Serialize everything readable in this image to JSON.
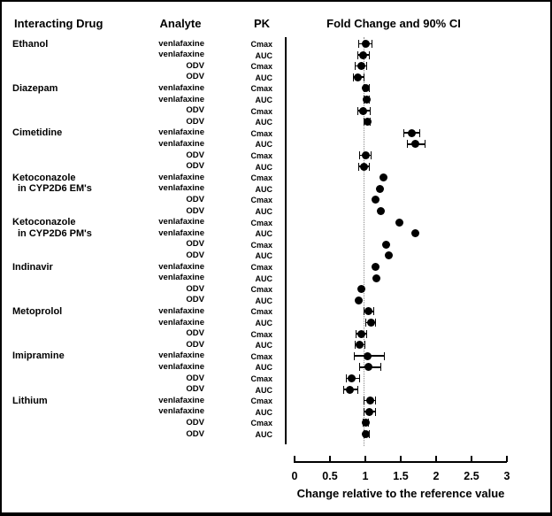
{
  "table": {
    "headers": {
      "drug": "Interacting Drug",
      "analyte": "Analyte",
      "pk": "PK"
    }
  },
  "chart_data": {
    "type": "scatter",
    "subtype": "forest-plot",
    "title": "Fold Change and 90% CI",
    "xlabel": "Change relative to the reference value",
    "x_ticks": [
      "0",
      "0.5",
      "1",
      "1.5",
      "2",
      "2.5",
      "3"
    ],
    "xlim": [
      0,
      3
    ],
    "reference_line": 1,
    "ci_level": "90%",
    "grid": false,
    "legend_position": "none",
    "rows": [
      {
        "drug": "Ethanol",
        "indent": false,
        "analyte": "venlafaxine",
        "pk": "Cmax",
        "value": 1.0,
        "ci": [
          0.9,
          1.1
        ]
      },
      {
        "drug": "",
        "indent": false,
        "analyte": "venlafaxine",
        "pk": "AUC",
        "value": 0.97,
        "ci": [
          0.89,
          1.06
        ]
      },
      {
        "drug": "",
        "indent": false,
        "analyte": "ODV",
        "pk": "Cmax",
        "value": 0.94,
        "ci": [
          0.85,
          1.03
        ]
      },
      {
        "drug": "",
        "indent": false,
        "analyte": "ODV",
        "pk": "AUC",
        "value": 0.89,
        "ci": [
          0.82,
          0.99
        ]
      },
      {
        "drug": "Diazepam",
        "indent": false,
        "analyte": "venlafaxine",
        "pk": "Cmax",
        "value": 1.01,
        "ci": [
          0.97,
          1.06
        ]
      },
      {
        "drug": "",
        "indent": false,
        "analyte": "venlafaxine",
        "pk": "AUC",
        "value": 1.02,
        "ci": [
          0.97,
          1.06
        ]
      },
      {
        "drug": "",
        "indent": false,
        "analyte": "ODV",
        "pk": "Cmax",
        "value": 0.97,
        "ci": [
          0.89,
          1.08
        ]
      },
      {
        "drug": "",
        "indent": false,
        "analyte": "ODV",
        "pk": "AUC",
        "value": 1.03,
        "ci": [
          0.98,
          1.07
        ]
      },
      {
        "drug": "Cimetidine",
        "indent": false,
        "analyte": "venlafaxine",
        "pk": "Cmax",
        "value": 1.65,
        "ci": [
          1.54,
          1.77
        ]
      },
      {
        "drug": "",
        "indent": false,
        "analyte": "venlafaxine",
        "pk": "AUC",
        "value": 1.71,
        "ci": [
          1.59,
          1.85
        ]
      },
      {
        "drug": "",
        "indent": false,
        "analyte": "ODV",
        "pk": "Cmax",
        "value": 1.0,
        "ci": [
          0.91,
          1.09
        ]
      },
      {
        "drug": "",
        "indent": false,
        "analyte": "ODV",
        "pk": "AUC",
        "value": 0.98,
        "ci": [
          0.9,
          1.06
        ]
      },
      {
        "drug": "Ketoconazole",
        "indent": false,
        "analyte": "venlafaxine",
        "pk": "Cmax",
        "value": 1.25,
        "ci": null
      },
      {
        "drug": "in CYP2D6 EM's",
        "indent": true,
        "analyte": "venlafaxine",
        "pk": "AUC",
        "value": 1.21,
        "ci": null
      },
      {
        "drug": "",
        "indent": false,
        "analyte": "ODV",
        "pk": "Cmax",
        "value": 1.14,
        "ci": null
      },
      {
        "drug": "",
        "indent": false,
        "analyte": "ODV",
        "pk": "AUC",
        "value": 1.22,
        "ci": null
      },
      {
        "drug": "Ketoconazole",
        "indent": false,
        "analyte": "venlafaxine",
        "pk": "Cmax",
        "value": 1.48,
        "ci": null
      },
      {
        "drug": "in CYP2D6 PM's",
        "indent": true,
        "analyte": "venlafaxine",
        "pk": "AUC",
        "value": 1.71,
        "ci": null
      },
      {
        "drug": "",
        "indent": false,
        "analyte": "ODV",
        "pk": "Cmax",
        "value": 1.29,
        "ci": null
      },
      {
        "drug": "",
        "indent": false,
        "analyte": "ODV",
        "pk": "AUC",
        "value": 1.33,
        "ci": null
      },
      {
        "drug": "Indinavir",
        "indent": false,
        "analyte": "venlafaxine",
        "pk": "Cmax",
        "value": 1.14,
        "ci": null
      },
      {
        "drug": "",
        "indent": false,
        "analyte": "venlafaxine",
        "pk": "AUC",
        "value": 1.16,
        "ci": null
      },
      {
        "drug": "",
        "indent": false,
        "analyte": "ODV",
        "pk": "Cmax",
        "value": 0.94,
        "ci": null
      },
      {
        "drug": "",
        "indent": false,
        "analyte": "ODV",
        "pk": "AUC",
        "value": 0.91,
        "ci": null
      },
      {
        "drug": "Metoprolol",
        "indent": false,
        "analyte": "venlafaxine",
        "pk": "Cmax",
        "value": 1.04,
        "ci": [
          0.97,
          1.13
        ]
      },
      {
        "drug": "",
        "indent": false,
        "analyte": "venlafaxine",
        "pk": "AUC",
        "value": 1.08,
        "ci": [
          1.0,
          1.15
        ]
      },
      {
        "drug": "",
        "indent": false,
        "analyte": "ODV",
        "pk": "Cmax",
        "value": 0.94,
        "ci": [
          0.86,
          1.02
        ]
      },
      {
        "drug": "",
        "indent": false,
        "analyte": "ODV",
        "pk": "AUC",
        "value": 0.92,
        "ci": [
          0.85,
          1.0
        ]
      },
      {
        "drug": "Imipramine",
        "indent": false,
        "analyte": "venlafaxine",
        "pk": "Cmax",
        "value": 1.03,
        "ci": [
          0.84,
          1.28
        ]
      },
      {
        "drug": "",
        "indent": false,
        "analyte": "venlafaxine",
        "pk": "AUC",
        "value": 1.04,
        "ci": [
          0.91,
          1.22
        ]
      },
      {
        "drug": "",
        "indent": false,
        "analyte": "ODV",
        "pk": "Cmax",
        "value": 0.81,
        "ci": [
          0.72,
          0.92
        ]
      },
      {
        "drug": "",
        "indent": false,
        "analyte": "ODV",
        "pk": "AUC",
        "value": 0.78,
        "ci": [
          0.69,
          0.9
        ]
      },
      {
        "drug": "Lithium",
        "indent": false,
        "analyte": "venlafaxine",
        "pk": "Cmax",
        "value": 1.07,
        "ci": [
          0.97,
          1.15
        ]
      },
      {
        "drug": "",
        "indent": false,
        "analyte": "venlafaxine",
        "pk": "AUC",
        "value": 1.06,
        "ci": [
          0.98,
          1.15
        ]
      },
      {
        "drug": "",
        "indent": false,
        "analyte": "ODV",
        "pk": "Cmax",
        "value": 1.0,
        "ci": [
          0.96,
          1.05
        ]
      },
      {
        "drug": "",
        "indent": false,
        "analyte": "ODV",
        "pk": "AUC",
        "value": 1.01,
        "ci": [
          0.97,
          1.06
        ]
      }
    ]
  },
  "colors": {
    "marker": "#000000",
    "text": "#000000",
    "background": "#ffffff",
    "reference_line": "#888888"
  }
}
